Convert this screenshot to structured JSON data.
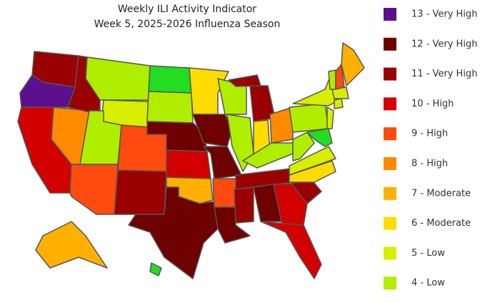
{
  "title": [
    "Weekly ILI Activity Indicator",
    "Week 5, 2025-2026 Influenza Season"
  ],
  "legend": [
    {
      "label": "13 - Very High",
      "color": "#5b0f8f"
    },
    {
      "label": "12 - Very High",
      "color": "#6e0000"
    },
    {
      "label": "11 - Very High",
      "color": "#9b0000"
    },
    {
      "label": "10 - High",
      "color": "#d20000"
    },
    {
      "label": "9 - High",
      "color": "#ff4a10"
    },
    {
      "label": "8 - High",
      "color": "#ff8a00"
    },
    {
      "label": "7 - Moderate",
      "color": "#ffb000"
    },
    {
      "label": "6 - Moderate",
      "color": "#ffdc00"
    },
    {
      "label": "5 - Low",
      "color": "#d8ee00"
    },
    {
      "label": "4 - Low",
      "color": "#b0ee00"
    }
  ],
  "regions": [
    {
      "level": 11,
      "color": "#9b0000"
    },
    {
      "level": 13,
      "color": "#5b0f8f"
    },
    {
      "level": 10,
      "color": "#d20000"
    },
    {
      "level": 8,
      "color": "#ff8a00"
    },
    {
      "level": 11,
      "color": "#9b0000"
    },
    {
      "level": 4,
      "color": "#b0ee00"
    },
    {
      "level": 5,
      "color": "#d8ee00"
    },
    {
      "level": 4,
      "color": "#b0ee00"
    },
    {
      "level": 9,
      "color": "#ff4a10"
    },
    {
      "level": 9,
      "color": "#ff4a10"
    },
    {
      "level": 11,
      "color": "#9b0000"
    },
    {
      "level": 3,
      "color": "#22dd22"
    },
    {
      "level": 4,
      "color": "#b0ee00"
    },
    {
      "level": 12,
      "color": "#6e0000"
    },
    {
      "level": 10,
      "color": "#d20000"
    },
    {
      "level": 7,
      "color": "#ffb000"
    },
    {
      "level": 12,
      "color": "#6e0000"
    },
    {
      "level": 6,
      "color": "#ffdc00"
    },
    {
      "level": 12,
      "color": "#6e0000"
    },
    {
      "level": 12,
      "color": "#6e0000"
    },
    {
      "level": 9,
      "color": "#ff4a10"
    },
    {
      "level": 12,
      "color": "#6e0000"
    },
    {
      "level": 4,
      "color": "#b0ee00"
    },
    {
      "level": 4,
      "color": "#b0ee00"
    },
    {
      "level": 11,
      "color": "#9b0000"
    },
    {
      "level": 11,
      "color": "#9b0000"
    },
    {
      "level": 6,
      "color": "#ffdc00"
    },
    {
      "level": 8,
      "color": "#ff8a00"
    },
    {
      "level": 4,
      "color": "#b0ee00"
    },
    {
      "level": 11,
      "color": "#9b0000"
    },
    {
      "level": 11,
      "color": "#9b0000"
    },
    {
      "level": 12,
      "color": "#6e0000"
    },
    {
      "level": 10,
      "color": "#d20000"
    },
    {
      "level": 10,
      "color": "#d20000"
    },
    {
      "level": 11,
      "color": "#9b0000"
    },
    {
      "level": 6,
      "color": "#ffdc00"
    },
    {
      "level": 5,
      "color": "#d8ee00"
    },
    {
      "level": 4,
      "color": "#b0ee00"
    },
    {
      "level": 4,
      "color": "#b0ee00"
    },
    {
      "level": 5,
      "color": "#d8ee00"
    },
    {
      "level": 5,
      "color": "#d8ee00"
    },
    {
      "level": 3,
      "color": "#22dd22"
    },
    {
      "level": 5,
      "color": "#d8ee00"
    },
    {
      "level": 5,
      "color": "#d8ee00"
    },
    {
      "level": 4,
      "color": "#b0ee00"
    },
    {
      "level": 9,
      "color": "#ff4a10"
    },
    {
      "level": 7,
      "color": "#ffb000"
    },
    {
      "level": 7,
      "color": "#ffb000"
    },
    {
      "level": 3,
      "color": "#22dd22"
    }
  ]
}
